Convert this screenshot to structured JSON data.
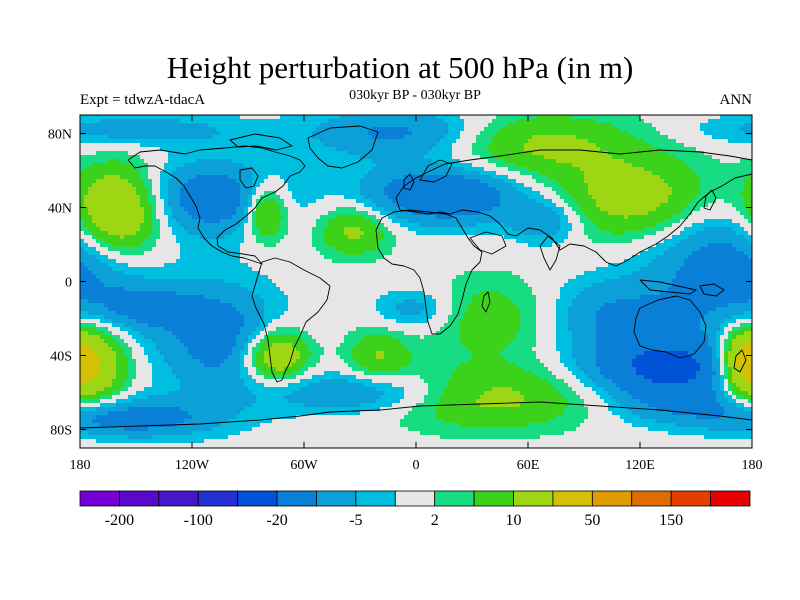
{
  "title": "Height perturbation at 500 hPa (in m)",
  "subtitle_left": "Expt = tdwzA-tdacA",
  "subtitle_center": "030kyr BP - 030kyr BP",
  "subtitle_right": "ANN",
  "chart_data": {
    "type": "filled-contour-map",
    "variable": "Height perturbation at 500 hPa",
    "units": "m",
    "season": "ANN",
    "projection": "cylindrical equidistant",
    "lon_range": [
      -180,
      180
    ],
    "lat_range": [
      -90,
      90
    ],
    "x_ticks": [
      {
        "lon": -180,
        "label": "180"
      },
      {
        "lon": -120,
        "label": "120W"
      },
      {
        "lon": -60,
        "label": "60W"
      },
      {
        "lon": 0,
        "label": "0"
      },
      {
        "lon": 60,
        "label": "60E"
      },
      {
        "lon": 120,
        "label": "120E"
      },
      {
        "lon": 180,
        "label": "180"
      }
    ],
    "y_ticks": [
      {
        "lat": 80,
        "label": "80N"
      },
      {
        "lat": 40,
        "label": "40N"
      },
      {
        "lat": 0,
        "label": "0"
      },
      {
        "lat": -40,
        "label": "40S"
      },
      {
        "lat": -80,
        "label": "80S"
      }
    ],
    "levels": [
      -200,
      -150,
      -100,
      -50,
      -20,
      -10,
      -5,
      -2,
      2,
      5,
      10,
      20,
      50,
      100,
      150,
      200
    ],
    "colors": [
      "#7400d6",
      "#5a08cc",
      "#4616c9",
      "#2430d4",
      "#0052d6",
      "#0a7fd8",
      "#0ba0d8",
      "#00bedf",
      "#e6e6e6",
      "#18dc82",
      "#3cd21c",
      "#9fd614",
      "#d4c004",
      "#df9a00",
      "#e06c00",
      "#e53c00",
      "#e80000"
    ],
    "colorbar_labels": [
      {
        "level": -200,
        "label": "-200"
      },
      {
        "level": -100,
        "label": "-100"
      },
      {
        "level": -20,
        "label": "-20"
      },
      {
        "level": -5,
        "label": "-5"
      },
      {
        "level": 2,
        "label": "2"
      },
      {
        "level": 10,
        "label": "10"
      },
      {
        "level": 50,
        "label": "50"
      },
      {
        "level": 150,
        "label": "150"
      }
    ],
    "anomaly_centers": [
      {
        "lon": 15,
        "lat": 47,
        "amp": -19,
        "sx": 30,
        "sy": 11
      },
      {
        "lon": 135,
        "lat": -47,
        "amp": -23,
        "sx": 30,
        "sy": 12
      },
      {
        "lon": 168,
        "lat": 10,
        "amp": -15,
        "sx": 30,
        "sy": 28
      },
      {
        "lon": 105,
        "lat": -18,
        "amp": -10,
        "sx": 25,
        "sy": 14
      },
      {
        "lon": -110,
        "lat": 45,
        "amp": -15,
        "sx": 28,
        "sy": 14
      },
      {
        "lon": -5,
        "lat": 80,
        "amp": -13,
        "sx": 35,
        "sy": 10
      },
      {
        "lon": 70,
        "lat": 33,
        "amp": -11,
        "sx": 14,
        "sy": 9
      },
      {
        "lon": -145,
        "lat": -14,
        "amp": -10,
        "sx": 20,
        "sy": 9
      },
      {
        "lon": -105,
        "lat": -30,
        "amp": -14,
        "sx": 22,
        "sy": 20
      },
      {
        "lon": 0,
        "lat": -15,
        "amp": -8,
        "sx": 15,
        "sy": 8
      },
      {
        "lon": -30,
        "lat": -60,
        "amp": -11,
        "sx": 35,
        "sy": 8
      },
      {
        "lon": -140,
        "lat": -73,
        "amp": -9,
        "sx": 30,
        "sy": 8
      },
      {
        "lon": 150,
        "lat": -68,
        "amp": -8,
        "sx": 30,
        "sy": 8
      },
      {
        "lon": -165,
        "lat": -75,
        "amp": -7,
        "sx": 25,
        "sy": 6
      },
      {
        "lon": -160,
        "lat": 38,
        "amp": 25,
        "sx": 17,
        "sy": 17
      },
      {
        "lon": -175,
        "lat": -45,
        "amp": 24,
        "sx": 14,
        "sy": 16
      },
      {
        "lon": -75,
        "lat": -40,
        "amp": 20,
        "sx": 12,
        "sy": 10
      },
      {
        "lon": -80,
        "lat": 38,
        "amp": 17,
        "sx": 8,
        "sy": 11
      },
      {
        "lon": -33,
        "lat": 28,
        "amp": 12,
        "sx": 14,
        "sy": 10
      },
      {
        "lon": 175,
        "lat": -43,
        "amp": 18,
        "sx": 9,
        "sy": 12
      },
      {
        "lon": 120,
        "lat": 45,
        "amp": 15,
        "sx": 35,
        "sy": 16
      },
      {
        "lon": 60,
        "lat": 75,
        "amp": 12,
        "sx": 40,
        "sy": 12
      },
      {
        "lon": 40,
        "lat": -63,
        "amp": 12,
        "sx": 40,
        "sy": 12
      },
      {
        "lon": 40,
        "lat": -20,
        "amp": 8,
        "sx": 25,
        "sy": 16
      },
      {
        "lon": -20,
        "lat": -40,
        "amp": 10,
        "sx": 12,
        "sy": 10
      },
      {
        "lon": -150,
        "lat": 82,
        "amp": -8,
        "sx": 40,
        "sy": 6
      }
    ]
  }
}
